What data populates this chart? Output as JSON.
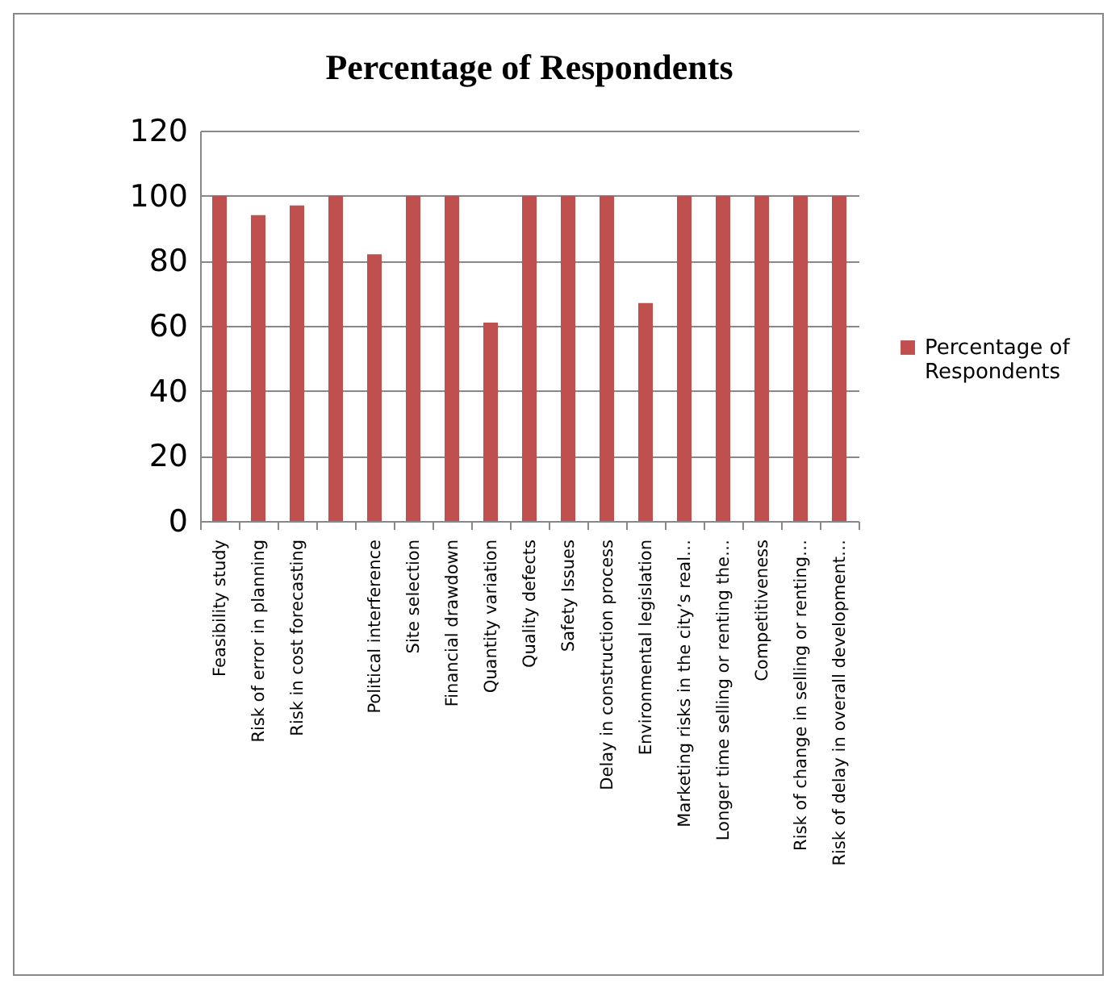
{
  "chart_data": {
    "type": "bar",
    "title": "Percentage of Respondents",
    "categories": [
      "Feasibility study",
      "Risk of error in planning",
      "Risk in cost forecasting",
      null,
      "Political interference",
      "Site selection",
      "Financial drawdown",
      "Quantity variation",
      "Quality defects",
      "Safety Issues",
      "Delay in construction process",
      "Environmental legislation",
      "Marketing risks in the city’s real…",
      "Longer time selling or renting the…",
      "Competitiveness",
      "Risk of change in selling or renting…",
      "Risk of delay in overall development…"
    ],
    "series": [
      {
        "name": "Percentage of Respondents",
        "color": "#c0504d",
        "values": [
          100,
          94,
          97,
          100,
          82,
          100,
          100,
          61,
          100,
          100,
          100,
          67,
          100,
          100,
          100,
          100,
          100
        ]
      }
    ],
    "ylim": [
      0,
      120
    ],
    "yticks": [
      0,
      20,
      40,
      60,
      80,
      100,
      120
    ],
    "grid": "y",
    "legend": "right"
  }
}
